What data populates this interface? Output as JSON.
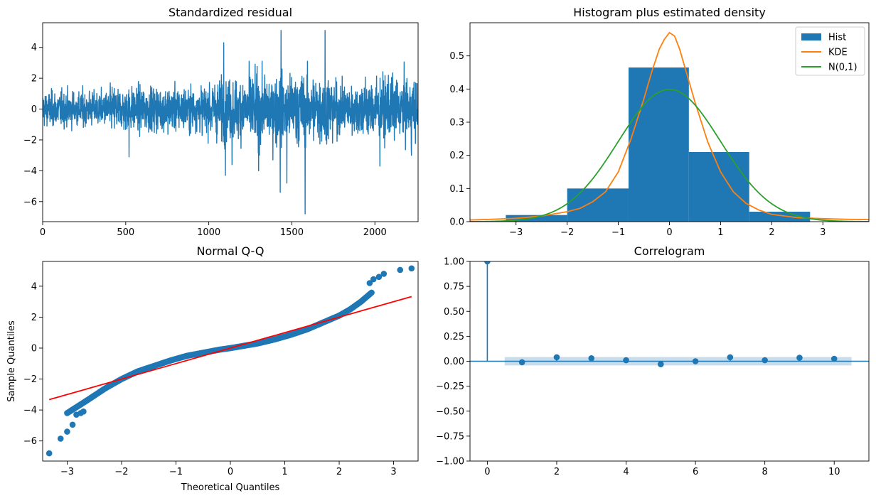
{
  "colors": {
    "blue": "#1f77b4",
    "orange": "#ff7f0e",
    "green": "#2ca02c",
    "red": "#ff0000",
    "band": "#1f77b4"
  },
  "chart_data": [
    {
      "id": "residual",
      "type": "line",
      "title": "Standardized residual",
      "xlabel": "",
      "ylabel": "",
      "xlim": [
        0,
        2260
      ],
      "ylim": [
        -7.3,
        5.6
      ],
      "xticks": [
        0,
        500,
        1000,
        1500,
        2000
      ],
      "yticks": [
        -6,
        -4,
        -2,
        0,
        2,
        4
      ],
      "n_points": 2260,
      "notable_points": [
        {
          "x": 1435,
          "y": 5.1
        },
        {
          "x": 1700,
          "y": 5.1
        },
        {
          "x": 1090,
          "y": 4.3
        },
        {
          "x": 1580,
          "y": -6.8
        },
        {
          "x": 1430,
          "y": -5.4
        },
        {
          "x": 1470,
          "y": -4.8
        },
        {
          "x": 1100,
          "y": -4.3
        },
        {
          "x": 1300,
          "y": -4.0
        },
        {
          "x": 1140,
          "y": -3.6
        },
        {
          "x": 2030,
          "y": -3.7
        },
        {
          "x": 2220,
          "y": -3.0
        },
        {
          "x": 520,
          "y": -3.1
        }
      ]
    },
    {
      "id": "histogram",
      "type": "bar",
      "title": "Histogram plus estimated density",
      "xlim": [
        -3.9,
        3.9
      ],
      "ylim": [
        0,
        0.6
      ],
      "xticks": [
        -3,
        -2,
        -1,
        0,
        1,
        2,
        3
      ],
      "yticks": [
        0.0,
        0.1,
        0.2,
        0.3,
        0.4,
        0.5
      ],
      "bins": [
        {
          "x0": -3.2,
          "x1": -2.0,
          "value": 0.02
        },
        {
          "x0": -2.0,
          "x1": -0.8,
          "value": 0.1
        },
        {
          "x0": -0.8,
          "x1": 0.38,
          "value": 0.465
        },
        {
          "x0": 0.38,
          "x1": 1.56,
          "value": 0.21
        },
        {
          "x0": 1.56,
          "x1": 2.75,
          "value": 0.03
        }
      ],
      "kde": {
        "x": [
          -3.9,
          -3.5,
          -3.0,
          -2.5,
          -2.0,
          -1.75,
          -1.5,
          -1.25,
          -1.0,
          -0.75,
          -0.5,
          -0.35,
          -0.2,
          -0.1,
          0.0,
          0.1,
          0.2,
          0.35,
          0.5,
          0.75,
          1.0,
          1.25,
          1.5,
          1.75,
          2.0,
          2.5,
          3.0,
          3.5,
          3.9
        ],
        "y": [
          0.005,
          0.007,
          0.01,
          0.017,
          0.03,
          0.04,
          0.06,
          0.09,
          0.15,
          0.25,
          0.37,
          0.45,
          0.52,
          0.55,
          0.57,
          0.56,
          0.52,
          0.44,
          0.36,
          0.24,
          0.15,
          0.09,
          0.055,
          0.035,
          0.022,
          0.012,
          0.009,
          0.007,
          0.006
        ]
      },
      "legend": [
        {
          "label": "Hist",
          "kind": "patch"
        },
        {
          "label": "KDE",
          "kind": "line"
        },
        {
          "label": "N(0,1)",
          "kind": "line"
        }
      ]
    },
    {
      "id": "qq",
      "type": "scatter",
      "title": "Normal Q-Q",
      "xlabel": "Theoretical Quantiles",
      "ylabel": "Sample Quantiles",
      "xlim": [
        -3.45,
        3.45
      ],
      "ylim": [
        -7.3,
        5.6
      ],
      "xticks": [
        -3,
        -2,
        -1,
        0,
        1,
        2,
        3
      ],
      "yticks": [
        -6,
        -4,
        -2,
        0,
        2,
        4
      ],
      "reference_line": {
        "x": [
          -3.33,
          3.33
        ],
        "y": [
          -3.33,
          3.33
        ]
      },
      "curve": {
        "x": [
          -3.0,
          -2.6,
          -2.3,
          -2.0,
          -1.7,
          -1.4,
          -1.1,
          -0.8,
          -0.5,
          -0.2,
          0.0,
          0.2,
          0.5,
          0.8,
          1.1,
          1.4,
          1.6,
          1.8,
          2.0,
          2.2,
          2.4,
          2.6
        ],
        "y": [
          -4.2,
          -3.3,
          -2.6,
          -2.0,
          -1.5,
          -1.15,
          -0.8,
          -0.5,
          -0.3,
          -0.1,
          0.0,
          0.12,
          0.3,
          0.55,
          0.85,
          1.2,
          1.5,
          1.8,
          2.1,
          2.5,
          3.0,
          3.6
        ]
      },
      "tail_points": [
        {
          "x": -3.33,
          "y": -6.8
        },
        {
          "x": -3.12,
          "y": -5.85
        },
        {
          "x": -3.0,
          "y": -5.4
        },
        {
          "x": -2.9,
          "y": -4.95
        },
        {
          "x": -2.83,
          "y": -4.3
        },
        {
          "x": -2.75,
          "y": -4.2
        },
        {
          "x": -2.7,
          "y": -4.1
        },
        {
          "x": 2.56,
          "y": 4.2
        },
        {
          "x": 2.63,
          "y": 4.45
        },
        {
          "x": 2.73,
          "y": 4.6
        },
        {
          "x": 2.82,
          "y": 4.8
        },
        {
          "x": 3.12,
          "y": 5.05
        },
        {
          "x": 3.33,
          "y": 5.15
        }
      ]
    },
    {
      "id": "correlogram",
      "type": "bar",
      "title": "Correlogram",
      "xlim": [
        -0.5,
        11.0
      ],
      "ylim": [
        -1.0,
        1.0
      ],
      "xticks": [
        0,
        2,
        4,
        6,
        8,
        10
      ],
      "yticks": [
        -1.0,
        -0.75,
        -0.5,
        -0.25,
        0.0,
        0.25,
        0.5,
        0.75,
        1.0
      ],
      "ytick_labels": [
        "−1.00",
        "−0.75",
        "−0.50",
        "−0.25",
        "0.00",
        "0.25",
        "0.50",
        "0.75",
        "1.00"
      ],
      "lags": [
        0,
        1,
        2,
        3,
        4,
        5,
        6,
        7,
        8,
        9,
        10
      ],
      "acf": [
        1.0,
        -0.01,
        0.04,
        0.03,
        0.01,
        -0.03,
        0.0,
        0.04,
        0.01,
        0.035,
        0.025
      ],
      "confidence_band": {
        "x0": 0.5,
        "x1": 10.5,
        "lower": -0.042,
        "upper": 0.042
      }
    }
  ]
}
